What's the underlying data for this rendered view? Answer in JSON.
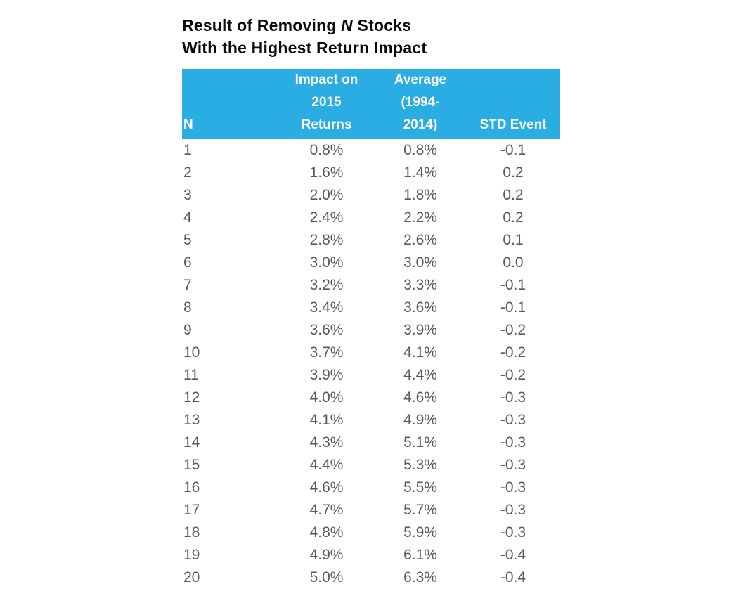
{
  "title": {
    "line1_pre": "Result of Removing ",
    "line1_italic": "N",
    "line1_post": " Stocks",
    "line2": "With the Highest Return Impact"
  },
  "colors": {
    "header_bg": "#29ADE3",
    "header_text": "#FFFFFF",
    "body_text": "#58595B",
    "title_text": "#0A0A0A"
  },
  "chart_data": {
    "type": "table",
    "title": "Result of Removing N Stocks With the Highest Return Impact",
    "columns": [
      "N",
      "Impact on 2015 Returns",
      "Average (1994-2014)",
      "STD Event"
    ],
    "header_display": [
      "N",
      "Impact on\n2015\nReturns",
      "Average\n(1994-\n2014)",
      "STD Event"
    ],
    "rows": [
      [
        "1",
        "0.8%",
        "0.8%",
        "-0.1"
      ],
      [
        "2",
        "1.6%",
        "1.4%",
        "0.2"
      ],
      [
        "3",
        "2.0%",
        "1.8%",
        "0.2"
      ],
      [
        "4",
        "2.4%",
        "2.2%",
        "0.2"
      ],
      [
        "5",
        "2.8%",
        "2.6%",
        "0.1"
      ],
      [
        "6",
        "3.0%",
        "3.0%",
        "0.0"
      ],
      [
        "7",
        "3.2%",
        "3.3%",
        "-0.1"
      ],
      [
        "8",
        "3.4%",
        "3.6%",
        "-0.1"
      ],
      [
        "9",
        "3.6%",
        "3.9%",
        "-0.2"
      ],
      [
        "10",
        "3.7%",
        "4.1%",
        "-0.2"
      ],
      [
        "11",
        "3.9%",
        "4.4%",
        "-0.2"
      ],
      [
        "12",
        "4.0%",
        "4.6%",
        "-0.3"
      ],
      [
        "13",
        "4.1%",
        "4.9%",
        "-0.3"
      ],
      [
        "14",
        "4.3%",
        "5.1%",
        "-0.3"
      ],
      [
        "15",
        "4.4%",
        "5.3%",
        "-0.3"
      ],
      [
        "16",
        "4.6%",
        "5.5%",
        "-0.3"
      ],
      [
        "17",
        "4.7%",
        "5.7%",
        "-0.3"
      ],
      [
        "18",
        "4.8%",
        "5.9%",
        "-0.3"
      ],
      [
        "19",
        "4.9%",
        "6.1%",
        "-0.4"
      ],
      [
        "20",
        "5.0%",
        "6.3%",
        "-0.4"
      ]
    ]
  }
}
